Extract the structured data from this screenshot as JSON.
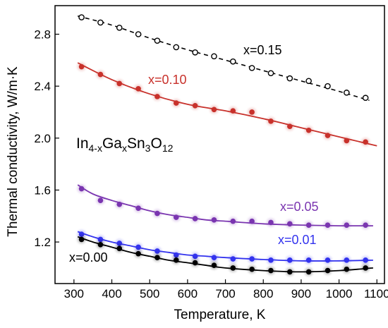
{
  "chart_data": {
    "type": "scatter",
    "xlabel": "Temperature, K",
    "ylabel": "Thermal conductivity, W/m·K",
    "xlim": [
      250,
      1120
    ],
    "ylim": [
      0.88,
      3.02
    ],
    "x_ticks": [
      300,
      400,
      500,
      600,
      700,
      800,
      900,
      1000,
      1100
    ],
    "y_ticks": [
      1.2,
      1.6,
      2.0,
      2.4,
      2.8
    ],
    "grid": false,
    "annotation": {
      "base": "In",
      "sub1": "4-x",
      "el2": "Ga",
      "sub2": "x",
      "el3": "Sn",
      "sub3": "3",
      "el4": "O",
      "sub4": "12"
    },
    "series": [
      {
        "name": "x=0.15",
        "color": "#000000",
        "marker": "open-circle",
        "line": "dashed",
        "points": [
          [
            320,
            2.93
          ],
          [
            370,
            2.89
          ],
          [
            420,
            2.85
          ],
          [
            470,
            2.8
          ],
          [
            520,
            2.75
          ],
          [
            570,
            2.7
          ],
          [
            620,
            2.66
          ],
          [
            670,
            2.63
          ],
          [
            720,
            2.59
          ],
          [
            770,
            2.54
          ],
          [
            820,
            2.5
          ],
          [
            870,
            2.46
          ],
          [
            920,
            2.44
          ],
          [
            970,
            2.4
          ],
          [
            1020,
            2.35
          ],
          [
            1070,
            2.31
          ]
        ],
        "fit": [
          [
            310,
            2.94
          ],
          [
            400,
            2.87
          ],
          [
            500,
            2.77
          ],
          [
            600,
            2.68
          ],
          [
            700,
            2.6
          ],
          [
            800,
            2.52
          ],
          [
            900,
            2.44
          ],
          [
            1000,
            2.36
          ],
          [
            1080,
            2.29
          ]
        ]
      },
      {
        "name": "x=0.10",
        "color": "#c8312b",
        "marker": "filled-circle",
        "line": "solid",
        "points": [
          [
            320,
            2.55
          ],
          [
            370,
            2.49
          ],
          [
            420,
            2.42
          ],
          [
            470,
            2.38
          ],
          [
            520,
            2.32
          ],
          [
            570,
            2.27
          ],
          [
            620,
            2.25
          ],
          [
            670,
            2.22
          ],
          [
            720,
            2.21
          ],
          [
            770,
            2.2
          ],
          [
            820,
            2.13
          ],
          [
            870,
            2.09
          ],
          [
            920,
            2.06
          ],
          [
            970,
            2.02
          ],
          [
            1020,
            1.98
          ],
          [
            1070,
            1.97
          ]
        ],
        "fit": [
          [
            310,
            2.58
          ],
          [
            400,
            2.45
          ],
          [
            500,
            2.34
          ],
          [
            600,
            2.26
          ],
          [
            700,
            2.21
          ],
          [
            800,
            2.15
          ],
          [
            900,
            2.08
          ],
          [
            1000,
            2.01
          ],
          [
            1100,
            1.94
          ]
        ]
      },
      {
        "name": "x=0.05",
        "color": "#7a35b0",
        "marker": "filled-circle",
        "line": "solid",
        "points": [
          [
            320,
            1.61
          ],
          [
            370,
            1.52
          ],
          [
            420,
            1.49
          ],
          [
            470,
            1.46
          ],
          [
            520,
            1.42
          ],
          [
            570,
            1.39
          ],
          [
            620,
            1.38
          ],
          [
            670,
            1.37
          ],
          [
            720,
            1.36
          ],
          [
            770,
            1.36
          ],
          [
            820,
            1.35
          ],
          [
            870,
            1.34
          ],
          [
            920,
            1.33
          ],
          [
            970,
            1.33
          ],
          [
            1020,
            1.33
          ],
          [
            1070,
            1.33
          ]
        ],
        "fit": [
          [
            310,
            1.64
          ],
          [
            350,
            1.57
          ],
          [
            400,
            1.52
          ],
          [
            450,
            1.48
          ],
          [
            500,
            1.44
          ],
          [
            550,
            1.41
          ],
          [
            600,
            1.39
          ],
          [
            650,
            1.37
          ],
          [
            700,
            1.36
          ],
          [
            800,
            1.34
          ],
          [
            900,
            1.33
          ],
          [
            1000,
            1.325
          ],
          [
            1090,
            1.325
          ]
        ]
      },
      {
        "name": "x=0.01",
        "color": "#3333ee",
        "marker": "filled-circle",
        "line": "solid",
        "points": [
          [
            320,
            1.26
          ],
          [
            370,
            1.22
          ],
          [
            420,
            1.19
          ],
          [
            470,
            1.16
          ],
          [
            520,
            1.13
          ],
          [
            570,
            1.1
          ],
          [
            620,
            1.09
          ],
          [
            670,
            1.08
          ],
          [
            720,
            1.07
          ],
          [
            770,
            1.07
          ],
          [
            820,
            1.06
          ],
          [
            870,
            1.06
          ],
          [
            920,
            1.06
          ],
          [
            970,
            1.06
          ],
          [
            1020,
            1.06
          ],
          [
            1070,
            1.06
          ]
        ],
        "fit": [
          [
            310,
            1.28
          ],
          [
            350,
            1.24
          ],
          [
            400,
            1.2
          ],
          [
            450,
            1.17
          ],
          [
            500,
            1.14
          ],
          [
            550,
            1.12
          ],
          [
            600,
            1.1
          ],
          [
            650,
            1.09
          ],
          [
            700,
            1.08
          ],
          [
            800,
            1.065
          ],
          [
            900,
            1.055
          ],
          [
            1000,
            1.055
          ],
          [
            1090,
            1.06
          ]
        ]
      },
      {
        "name": "x=0.00",
        "color": "#000000",
        "marker": "filled-circle",
        "line": "solid",
        "points": [
          [
            320,
            1.22
          ],
          [
            370,
            1.18
          ],
          [
            420,
            1.15
          ],
          [
            470,
            1.11
          ],
          [
            520,
            1.08
          ],
          [
            570,
            1.06
          ],
          [
            620,
            1.04
          ],
          [
            670,
            1.02
          ],
          [
            720,
            1.0
          ],
          [
            770,
            0.99
          ],
          [
            820,
            0.98
          ],
          [
            870,
            0.97
          ],
          [
            920,
            0.97
          ],
          [
            970,
            0.98
          ],
          [
            1020,
            0.99
          ],
          [
            1070,
            1.0
          ]
        ],
        "fit": [
          [
            310,
            1.24
          ],
          [
            350,
            1.2
          ],
          [
            400,
            1.16
          ],
          [
            450,
            1.12
          ],
          [
            500,
            1.09
          ],
          [
            550,
            1.06
          ],
          [
            600,
            1.04
          ],
          [
            650,
            1.02
          ],
          [
            700,
            1.0
          ],
          [
            800,
            0.98
          ],
          [
            900,
            0.97
          ],
          [
            1000,
            0.98
          ],
          [
            1090,
            1.0
          ]
        ]
      }
    ]
  }
}
